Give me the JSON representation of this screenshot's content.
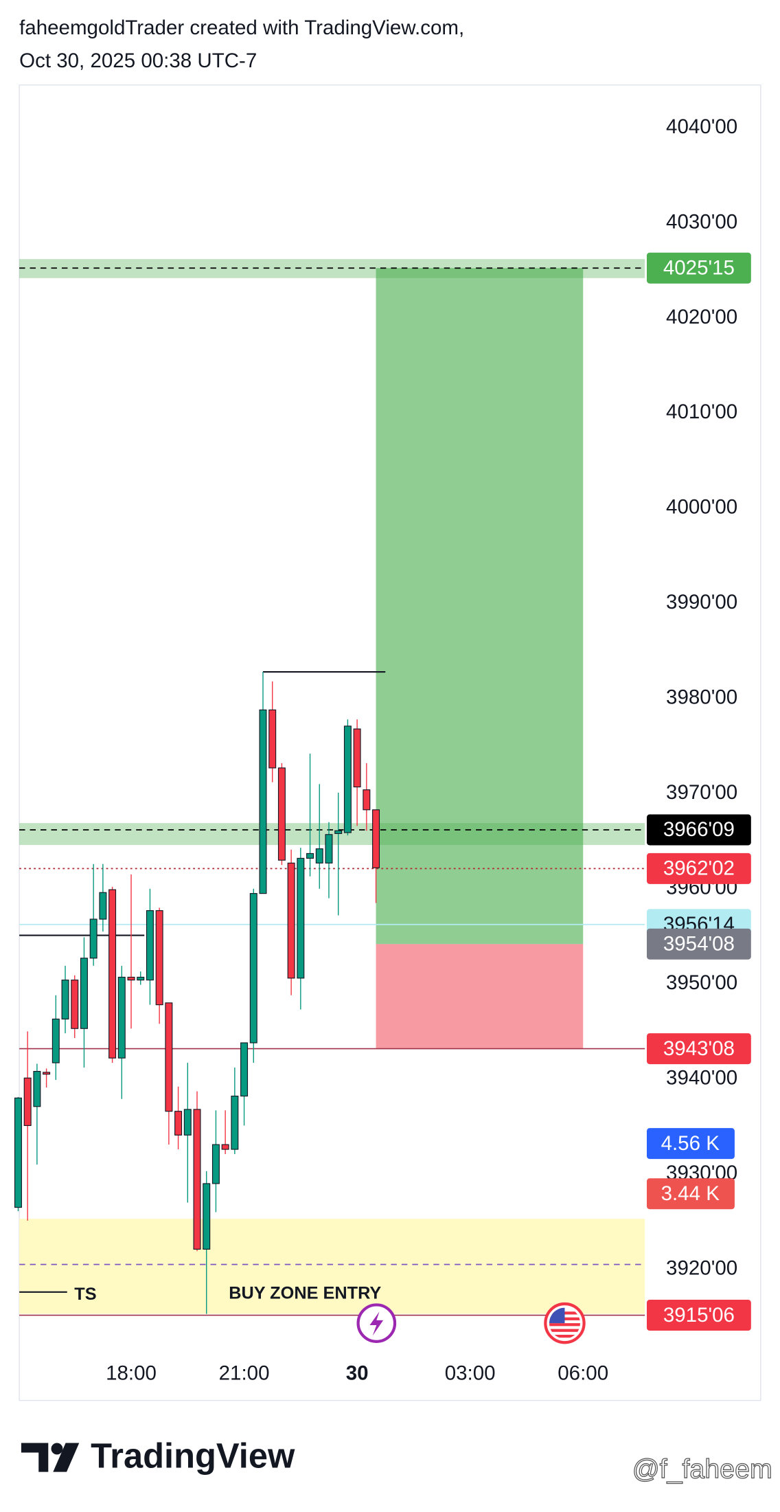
{
  "chart_data": {
    "type": "candlestick",
    "title": "faheemgoldTrader created with TradingView.com,",
    "subtitle": "Oct 30, 2025 00:38 UTC-7",
    "x": [
      15,
      15.25,
      15.5,
      15.75,
      16,
      16.25,
      16.5,
      16.75,
      17,
      17.25,
      17.5,
      17.75,
      18,
      18.25,
      18.5,
      18.75,
      19,
      19.25,
      19.5,
      19.75,
      20,
      20.25,
      20.5,
      20.75,
      21,
      21.25,
      21.5,
      21.75,
      22,
      22.25,
      22.5,
      22.75,
      23,
      23.25,
      23.5,
      23.75,
      24,
      24.25,
      24.5
    ],
    "open": [
      3926.4,
      3940,
      3937,
      3940.6,
      3941.6,
      3946.2,
      3950.3,
      3945.2,
      3952.6,
      3956.7,
      3959.8,
      3942.1,
      3950.6,
      3950.3,
      3950.3,
      3957.6,
      3947.9,
      3936.5,
      3934.0,
      3936.7,
      3922.0,
      3928.9,
      3933.0,
      3932.5,
      3938.1,
      3943.7,
      3959.4,
      3978.7,
      3972.6,
      3962.6,
      3950.5,
      3963.1,
      3962.6,
      3962.6,
      3965.7,
      3965.8,
      3976.7,
      3970.3,
      3968.2
    ],
    "high": [
      3938,
      3944.9,
      3941.5,
      3941,
      3948.7,
      3951.8,
      3950.8,
      3954.8,
      3962.5,
      3962.5,
      3960.1,
      3951.8,
      3961.4,
      3951.2,
      3959.9,
      3957.9,
      3947.9,
      3939.1,
      3941.6,
      3938.6,
      3930.2,
      3936.6,
      3936.6,
      3941.1,
      3943.7,
      3959.9,
      3982.7,
      3981.7,
      3973.1,
      3964.0,
      3964.2,
      3974.1,
      3970.9,
      3966.9,
      3970,
      3977.7,
      3977.7,
      3973.1,
      3968.2
    ],
    "low": [
      3926,
      3925,
      3930.9,
      3939,
      3939.8,
      3944.7,
      3944.2,
      3941.1,
      3951.8,
      3955.4,
      3941.6,
      3937.8,
      3945.2,
      3949.8,
      3947.7,
      3945.7,
      3933.0,
      3932.5,
      3926.9,
      3921.8,
      3915.2,
      3925.9,
      3932.0,
      3932.0,
      3935.0,
      3941.6,
      3959.4,
      3971.1,
      3962.4,
      3948.7,
      3947.2,
      3961.2,
      3959.9,
      3958.9,
      3957.1,
      3965.5,
      3966.5,
      3966.0,
      3958.4
    ],
    "close": [
      3937.9,
      3935,
      3940.7,
      3940.4,
      3946.2,
      3950.3,
      3945.2,
      3952.6,
      3956.7,
      3959.5,
      3942.1,
      3950.6,
      3950.3,
      3950.6,
      3957.6,
      3947.7,
      3936.5,
      3934.0,
      3936.7,
      3922.0,
      3928.9,
      3933.0,
      3932.5,
      3938.1,
      3943.7,
      3959.4,
      3978.7,
      3972.6,
      3962.9,
      3950.5,
      3963.1,
      3963.6,
      3964.1,
      3965.6,
      3966.0,
      3977.0,
      3970.6,
      3968.2,
      3962.1
    ],
    "up_color": "#089981",
    "down_color": "#f23645",
    "xlim": [
      15.03,
      31.64
    ],
    "ylim": [
      3906.1,
      4044.4
    ],
    "xticks": [
      {
        "value": 18,
        "label": "18:00"
      },
      {
        "value": 21,
        "label": "21:00"
      },
      {
        "value": 24,
        "label": "30"
      },
      {
        "value": 27,
        "label": "03:00"
      },
      {
        "value": 30,
        "label": "06:00"
      }
    ],
    "yticks": [
      {
        "value": 4040,
        "label": "4040'00"
      },
      {
        "value": 4030,
        "label": "4030'00"
      },
      {
        "value": 4020,
        "label": "4020'00"
      },
      {
        "value": 4010,
        "label": "4010'00"
      },
      {
        "value": 4000,
        "label": "4000'00"
      },
      {
        "value": 3990,
        "label": "3990'00"
      },
      {
        "value": 3980,
        "label": "3980'00"
      },
      {
        "value": 3970,
        "label": "3970'00"
      },
      {
        "value": 3960,
        "label": "3960'00"
      },
      {
        "value": 3950,
        "label": "3950'00"
      },
      {
        "value": 3940,
        "label": "3940'00"
      },
      {
        "value": 3930,
        "label": "3930'00"
      },
      {
        "value": 3920,
        "label": "3920'00"
      }
    ],
    "zones": [
      {
        "from": 4024.1,
        "to": 4026.1,
        "color": "rgba(76,175,80,0.35)"
      },
      {
        "from": 3964.5,
        "to": 3966.8,
        "color": "rgba(76,175,80,0.35)"
      },
      {
        "from": 3915.2,
        "to": 3925.2,
        "color": "#fff9c4"
      }
    ],
    "position": {
      "target": 4025.15,
      "entry": 3954.08,
      "stop": 3943.08,
      "start": 24.5,
      "end": 30.0,
      "profit_color": "rgba(76,175,80,0.62)",
      "loss_color": "rgba(242,54,69,0.5)"
    },
    "lines": [
      {
        "value": 4025.15,
        "color": "#000000",
        "style": "dashed"
      },
      {
        "value": 3966.09,
        "color": "#000000",
        "style": "dashed"
      },
      {
        "value": 3962.02,
        "color": "#b22833",
        "style": "dotted"
      },
      {
        "value": 3956.14,
        "color": "#b2ebf2",
        "style": "solid"
      },
      {
        "value": 3943.08,
        "color": "#a0304a",
        "style": "solid"
      },
      {
        "value": 3920.4,
        "color": "#7e57c2",
        "style": "dashed"
      },
      {
        "value": 3915.06,
        "color": "#a0304a",
        "style": "solid"
      }
    ],
    "segments": [
      {
        "value": 3955.0,
        "from": 15.03,
        "to": 18.35
      },
      {
        "value": 3982.7,
        "from": 21.5,
        "to": 24.75
      },
      {
        "value": 3917.5,
        "from": 15.03,
        "to": 16.3
      }
    ],
    "price_labels": [
      {
        "value": 4025.15,
        "label": "4025'15",
        "color": "#4caf50",
        "text_color": "#ffffff"
      },
      {
        "value": 3966.09,
        "label": "3966'09",
        "color": "#000000",
        "text_color": "#ffffff"
      },
      {
        "value": 3962.02,
        "label": "3962'02",
        "color": "#f23645",
        "text_color": "#ffffff"
      },
      {
        "value": 3956.14,
        "label": "3956'14",
        "color": "#b2ebf2",
        "text_color": "#131722"
      },
      {
        "value": 3954.08,
        "label": "3954'08",
        "color": "#787b86",
        "text_color": "#ffffff"
      },
      {
        "value": 3943.08,
        "label": "3943'08",
        "color": "#f23645",
        "text_color": "#ffffff"
      },
      {
        "value": 3915.06,
        "label": "3915'06",
        "color": "#f23645",
        "text_color": "#ffffff"
      }
    ],
    "volume_labels": [
      "4.56 K",
      "3.44 K"
    ],
    "annotations": [
      "TS",
      "BUY ZONE ENTRY"
    ],
    "brand": "TradingView",
    "watermark": "@f_faheem"
  }
}
